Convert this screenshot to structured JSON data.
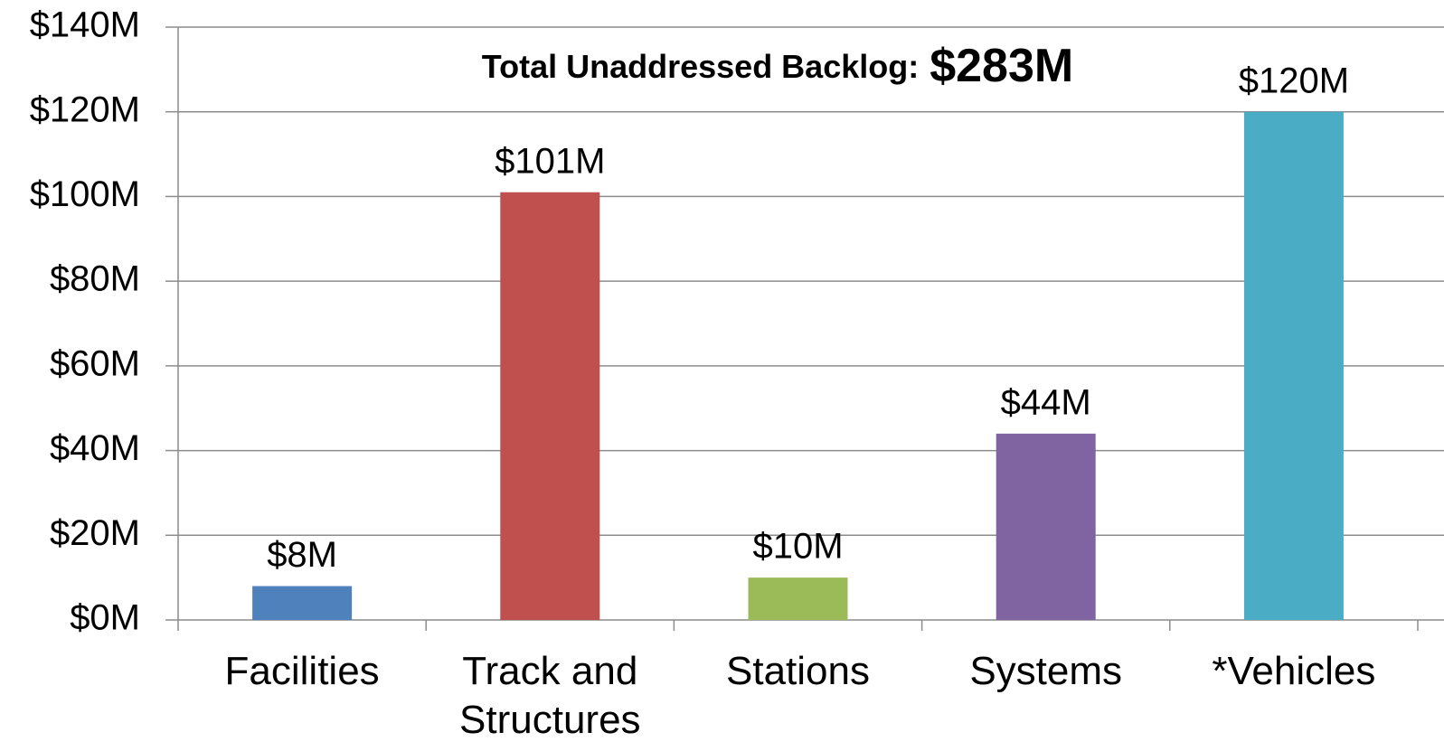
{
  "chart_data": {
    "type": "bar",
    "annotation": {
      "label": "Total Unaddressed Backlog:",
      "value": "$283M"
    },
    "categories": [
      "Facilities",
      "Track and Structures",
      "Stations",
      "Systems",
      "*Vehicles"
    ],
    "values": [
      8,
      101,
      10,
      44,
      120
    ],
    "value_labels": [
      "$8M",
      "$101M",
      "$10M",
      "$44M",
      "$120M"
    ],
    "colors": [
      "#4f81bd",
      "#c0504d",
      "#9bbb59",
      "#8064a2",
      "#4bacc6"
    ],
    "ylim": [
      0,
      140
    ],
    "yticks": [
      {
        "value": 0,
        "label": "$0M"
      },
      {
        "value": 20,
        "label": "$20M"
      },
      {
        "value": 40,
        "label": "$40M"
      },
      {
        "value": 60,
        "label": "$60M"
      },
      {
        "value": 80,
        "label": "$80M"
      },
      {
        "value": 100,
        "label": "$100M"
      },
      {
        "value": 120,
        "label": "$120M"
      },
      {
        "value": 140,
        "label": "$140M"
      }
    ],
    "grid": true
  }
}
